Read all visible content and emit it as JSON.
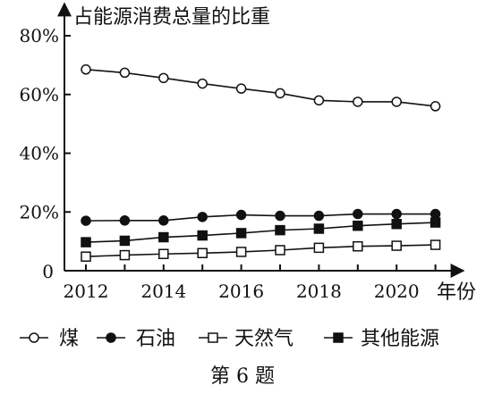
{
  "chart_data": {
    "type": "line",
    "ylabel": "占能源消费总量的比重",
    "xlabel": "年份",
    "x": [
      2012,
      2013,
      2014,
      2015,
      2016,
      2017,
      2018,
      2019,
      2020,
      2021
    ],
    "xticks": [
      "2012",
      "2014",
      "2016",
      "2018",
      "2020"
    ],
    "yticks": [
      "80%",
      "60%",
      "40%",
      "20%"
    ],
    "origin_label": "0",
    "ylim": [
      0,
      80
    ],
    "xlim": [
      2011.3,
      2021.8
    ],
    "grid": false,
    "legend_position": "bottom",
    "series": [
      {
        "name": "煤",
        "marker": "open-circle",
        "values": [
          68.5,
          67.4,
          65.6,
          63.7,
          62.0,
          60.4,
          58.0,
          57.5,
          57.5,
          56.0
        ]
      },
      {
        "name": "石油",
        "marker": "filled-circle",
        "values": [
          17.0,
          17.1,
          17.1,
          18.3,
          19.0,
          18.7,
          18.7,
          19.3,
          19.3,
          19.3
        ]
      },
      {
        "name": "天然气",
        "marker": "open-square",
        "values": [
          4.8,
          5.3,
          5.7,
          6.0,
          6.4,
          7.0,
          7.8,
          8.3,
          8.5,
          8.8
        ]
      },
      {
        "name": "其他能源",
        "marker": "filled-square",
        "values": [
          9.7,
          10.2,
          11.4,
          12.0,
          12.8,
          13.8,
          14.3,
          15.3,
          15.9,
          16.4
        ]
      }
    ]
  },
  "caption": "第 6 题"
}
